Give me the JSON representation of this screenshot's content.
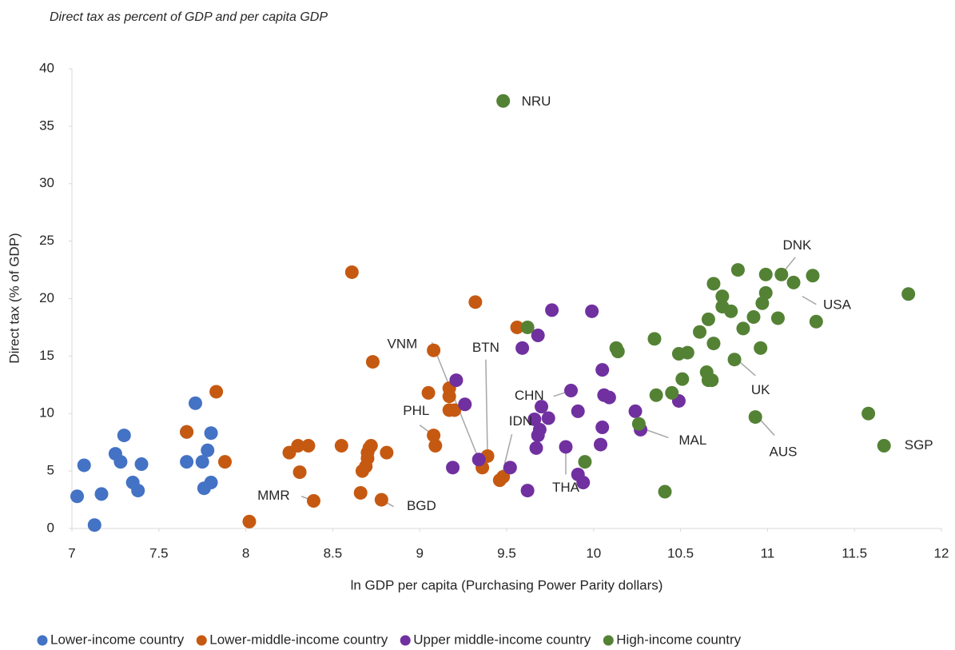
{
  "chart_data": {
    "type": "scatter",
    "title": "Direct tax as percent of GDP and per capita GDP",
    "x_label": "ln GDP per capita (Purchasing Power Parity dollars)",
    "y_label": "Direct tax (% of GDP)",
    "xlim": [
      7,
      12
    ],
    "xticks": [
      7,
      7.5,
      8,
      8.5,
      9,
      9.5,
      10,
      10.5,
      11,
      11.5,
      12
    ],
    "ylim": [
      0,
      40
    ],
    "yticks": [
      0,
      5,
      10,
      15,
      20,
      25,
      30,
      35,
      40
    ],
    "grid": false,
    "legend": "bottom",
    "series": [
      {
        "name": "Lower-income country",
        "color": "#4472c4",
        "x": [
          7.03,
          7.07,
          7.17,
          7.13,
          7.25,
          7.28,
          7.3,
          7.35,
          7.38,
          7.4,
          7.71,
          7.66,
          7.66,
          7.76,
          7.75,
          7.78,
          7.8,
          7.8
        ],
        "values": [
          2.8,
          5.5,
          3.0,
          0.3,
          6.5,
          5.8,
          8.1,
          4.0,
          3.3,
          5.6,
          10.9,
          5.8,
          8.4,
          3.5,
          5.8,
          6.8,
          8.3,
          4.0
        ]
      },
      {
        "name": "Lower-middle-income country",
        "color": "#c65911",
        "x": [
          7.66,
          7.83,
          7.88,
          8.02,
          8.25,
          8.3,
          8.36,
          8.31,
          8.39,
          8.55,
          8.61,
          8.66,
          8.67,
          8.7,
          8.7,
          8.71,
          8.69,
          8.72,
          8.73,
          8.81,
          8.78,
          9.05,
          9.08,
          9.08,
          9.09,
          9.17,
          9.17,
          9.17,
          9.2,
          9.32,
          9.39,
          9.36,
          9.46,
          9.48,
          9.56
        ],
        "values": [
          8.4,
          11.9,
          5.8,
          0.6,
          6.6,
          7.2,
          7.2,
          4.9,
          2.4,
          7.2,
          22.3,
          3.1,
          5.0,
          6.1,
          6.6,
          7.0,
          5.4,
          7.2,
          14.5,
          6.6,
          2.5,
          11.8,
          15.5,
          8.1,
          7.2,
          12.2,
          11.5,
          10.3,
          10.3,
          19.7,
          6.3,
          5.3,
          4.2,
          4.5,
          17.5
        ]
      },
      {
        "name": "Upper middle-income country",
        "color": "#7030a0",
        "x": [
          9.21,
          9.26,
          9.19,
          9.34,
          9.52,
          9.59,
          9.62,
          9.68,
          9.76,
          9.66,
          9.7,
          9.68,
          9.69,
          9.67,
          9.74,
          9.84,
          9.87,
          9.91,
          9.91,
          9.94,
          9.99,
          10.05,
          10.06,
          10.09,
          10.05,
          10.04,
          10.24,
          10.27,
          10.49
        ],
        "values": [
          12.9,
          10.8,
          5.3,
          6.0,
          5.3,
          15.7,
          3.3,
          16.8,
          19.0,
          9.5,
          10.6,
          8.1,
          8.6,
          7.0,
          9.6,
          7.1,
          12.0,
          10.2,
          4.7,
          4.0,
          18.9,
          13.8,
          11.6,
          11.4,
          8.8,
          7.3,
          10.2,
          8.6,
          11.1
        ]
      },
      {
        "name": "High-income country",
        "color": "#548235",
        "x": [
          9.48,
          9.62,
          9.95,
          10.13,
          10.14,
          10.26,
          10.35,
          10.36,
          10.41,
          10.45,
          10.49,
          10.51,
          10.54,
          10.61,
          10.65,
          10.66,
          10.66,
          10.68,
          10.69,
          10.69,
          10.74,
          10.74,
          10.79,
          10.83,
          10.81,
          10.86,
          10.92,
          10.93,
          10.96,
          10.97,
          10.99,
          10.99,
          11.06,
          11.08,
          11.15,
          11.26,
          11.28,
          11.58,
          11.67,
          11.81
        ],
        "values": [
          37.2,
          17.5,
          5.8,
          15.7,
          15.4,
          9.1,
          16.5,
          11.6,
          3.2,
          11.8,
          15.2,
          13.0,
          15.3,
          17.1,
          13.6,
          12.9,
          18.2,
          12.9,
          16.1,
          21.3,
          20.2,
          19.3,
          18.9,
          22.5,
          14.7,
          17.4,
          18.4,
          9.7,
          15.7,
          19.6,
          20.5,
          22.1,
          18.3,
          22.1,
          21.4,
          22.0,
          18.0,
          10.0,
          7.2,
          20.4
        ]
      }
    ],
    "annotations": [
      {
        "text": "NRU",
        "x": 9.67,
        "y": 37.1
      },
      {
        "text": "DNK",
        "x": 11.17,
        "y": 24.6,
        "line": [
          11.16,
          23.6,
          11.09,
          22.3
        ]
      },
      {
        "text": "USA",
        "x": 11.4,
        "y": 19.4,
        "line": [
          11.28,
          19.5,
          11.2,
          20.2
        ]
      },
      {
        "text": "UK",
        "x": 10.96,
        "y": 12.0,
        "line": [
          10.93,
          13.3,
          10.84,
          14.5
        ]
      },
      {
        "text": "AUS",
        "x": 11.09,
        "y": 6.6,
        "line": [
          11.04,
          8.1,
          10.95,
          9.6
        ]
      },
      {
        "text": "SGP",
        "x": 11.87,
        "y": 7.2
      },
      {
        "text": "MAL",
        "x": 10.57,
        "y": 7.6,
        "line": [
          10.43,
          7.9,
          10.3,
          8.6
        ]
      },
      {
        "text": "THA",
        "x": 9.84,
        "y": 3.5,
        "line": [
          9.84,
          4.7,
          9.84,
          6.7
        ]
      },
      {
        "text": "IDN",
        "x": 9.58,
        "y": 9.3,
        "line": [
          9.53,
          8.2,
          9.47,
          4.5
        ]
      },
      {
        "text": "CHN",
        "x": 9.63,
        "y": 11.5,
        "line": [
          9.77,
          11.5,
          9.85,
          11.9
        ]
      },
      {
        "text": "BTN",
        "x": 9.38,
        "y": 15.7,
        "line": [
          9.38,
          14.7,
          9.39,
          6.3
        ]
      },
      {
        "text": "VNM",
        "x": 8.9,
        "y": 16.0,
        "line": [
          9.07,
          16.2,
          9.34,
          6.0
        ]
      },
      {
        "text": "PHL",
        "x": 8.98,
        "y": 10.2,
        "line": [
          9.0,
          9.0,
          9.08,
          8.1
        ]
      },
      {
        "text": "MMR",
        "x": 8.16,
        "y": 2.8,
        "line": [
          8.32,
          2.8,
          8.39,
          2.4
        ]
      },
      {
        "text": "BGD",
        "x": 9.01,
        "y": 1.9,
        "line": [
          8.85,
          1.9,
          8.78,
          2.5
        ]
      }
    ]
  }
}
